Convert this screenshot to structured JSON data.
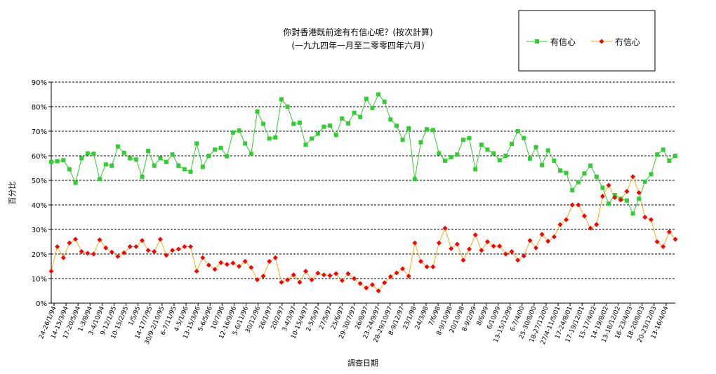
{
  "chart_data": {
    "type": "line",
    "title": "你對香港既前途有冇信心呢？(按次計算)",
    "subtitle": "(一九九四年一月至二零零四年六月)",
    "xlabel": "調查日期",
    "ylabel": "百分比",
    "ylim": [
      0,
      90
    ],
    "yticks": [
      "0%",
      "10%",
      "20%",
      "30%",
      "40%",
      "50%",
      "60%",
      "70%",
      "80%",
      "90%"
    ],
    "grid": "horizontal-dashed",
    "legend_position": "top-right",
    "x_tick_labels": [
      "24-26/1/94",
      "14-15/3/94",
      "17-20/5/94",
      "1-3/8/94",
      "3-4/10/94",
      "9-12/1/95",
      "10-15/2/95",
      "1/5/95",
      "14-17/7/95",
      "30/9-2/10/95",
      "6-7/11/95",
      "4-5/1/96",
      "13-15/3/96",
      "5-6/5/96",
      "10/7/96",
      "12-16/9/96",
      "5-6/11/96",
      "30/12/96",
      "26/1/97",
      "20/2/97",
      "3-4/3/97",
      "10-15/4/97",
      "2-5/5/97",
      "27/5/97",
      "25/6/97",
      "29-30/7/97",
      "26/8/97",
      "23-24/9/97",
      "28-29/10/97",
      "8-9/12/97",
      "23/1/98",
      "24/3/98",
      "7/6/98",
      "8-9/10/98",
      "20/10/98",
      "8-9/2/99",
      "8/6/99",
      "6/10/99",
      "13-15/12/99",
      "6-7/4/00",
      "25-30/8/00",
      "18-27/12/00",
      "27/4-11/5/01",
      "17-24/8/01",
      "17-19/12/01",
      "15-17/4/02",
      "14-19/8/02",
      "13-18/12/02",
      "16-23/4/03",
      "18-20/8/03",
      "20-23/12/03",
      "13-16/4/04"
    ],
    "series": [
      {
        "name": "有信心",
        "color": "#33cc33",
        "marker": "square",
        "values": [
          57.5,
          57.8,
          58.2,
          54.5,
          49,
          59,
          61,
          60.8,
          50.5,
          56.5,
          56,
          63.8,
          61.2,
          59,
          58.5,
          51.5,
          62,
          56,
          59,
          57.5,
          60.5,
          56,
          54.5,
          53.5,
          65,
          55.5,
          60,
          62.5,
          63.2,
          59.8,
          69.5,
          70.3,
          65,
          60.8,
          78,
          73,
          67,
          67.5,
          83,
          80,
          73,
          73.5,
          64.5,
          67,
          69,
          71.8,
          72.3,
          68.5,
          75.2,
          73.2,
          77.5,
          75.8,
          83.2,
          79.5,
          85,
          82,
          74.8,
          72.2,
          66.5,
          71.2,
          50.5,
          65.5,
          70.8,
          70.5,
          61,
          58,
          59.5,
          60.5,
          66.5,
          67.2,
          54.5,
          64.5,
          62.5,
          61,
          58.2,
          60,
          64.8,
          70,
          67.2,
          58.8,
          63.5,
          56.2,
          62.2,
          58,
          54,
          53,
          46,
          49.3,
          52.8,
          56,
          51.5,
          47,
          40.5,
          44,
          42.5,
          41.8,
          36.5,
          42.5,
          49.5,
          52.5,
          60.5,
          62.5,
          58,
          60
        ]
      },
      {
        "name": "冇信心",
        "color": "#ff0000",
        "line_color": "#ffaa22",
        "marker": "diamond",
        "values": [
          13,
          23,
          18.5,
          24.5,
          26,
          21,
          20.3,
          20,
          25.8,
          22.5,
          20.8,
          19,
          20.5,
          23,
          23,
          25.5,
          21.5,
          21,
          26,
          19.5,
          21.5,
          22,
          23,
          23,
          13,
          18.5,
          15.5,
          13.8,
          16.5,
          15.8,
          16.3,
          15,
          17,
          14.5,
          9.5,
          11,
          17,
          18.5,
          8.5,
          9.5,
          11.5,
          8.5,
          13,
          9.5,
          12.2,
          11.5,
          11.2,
          12,
          9.2,
          12,
          10,
          8,
          6.2,
          7.5,
          5,
          8.3,
          10.8,
          12.3,
          14,
          11,
          24.5,
          17,
          14.8,
          14.8,
          24.5,
          30.5,
          22.2,
          24,
          17.5,
          22,
          27.8,
          21.5,
          25,
          23.2,
          23.2,
          20,
          21,
          17.5,
          19.2,
          25.5,
          22.5,
          28,
          25.2,
          27,
          32,
          34,
          40,
          40,
          35.5,
          30.5,
          32,
          43.5,
          48,
          43,
          42,
          45.5,
          51.5,
          45,
          35,
          34,
          25,
          23,
          29,
          26
        ]
      }
    ]
  }
}
